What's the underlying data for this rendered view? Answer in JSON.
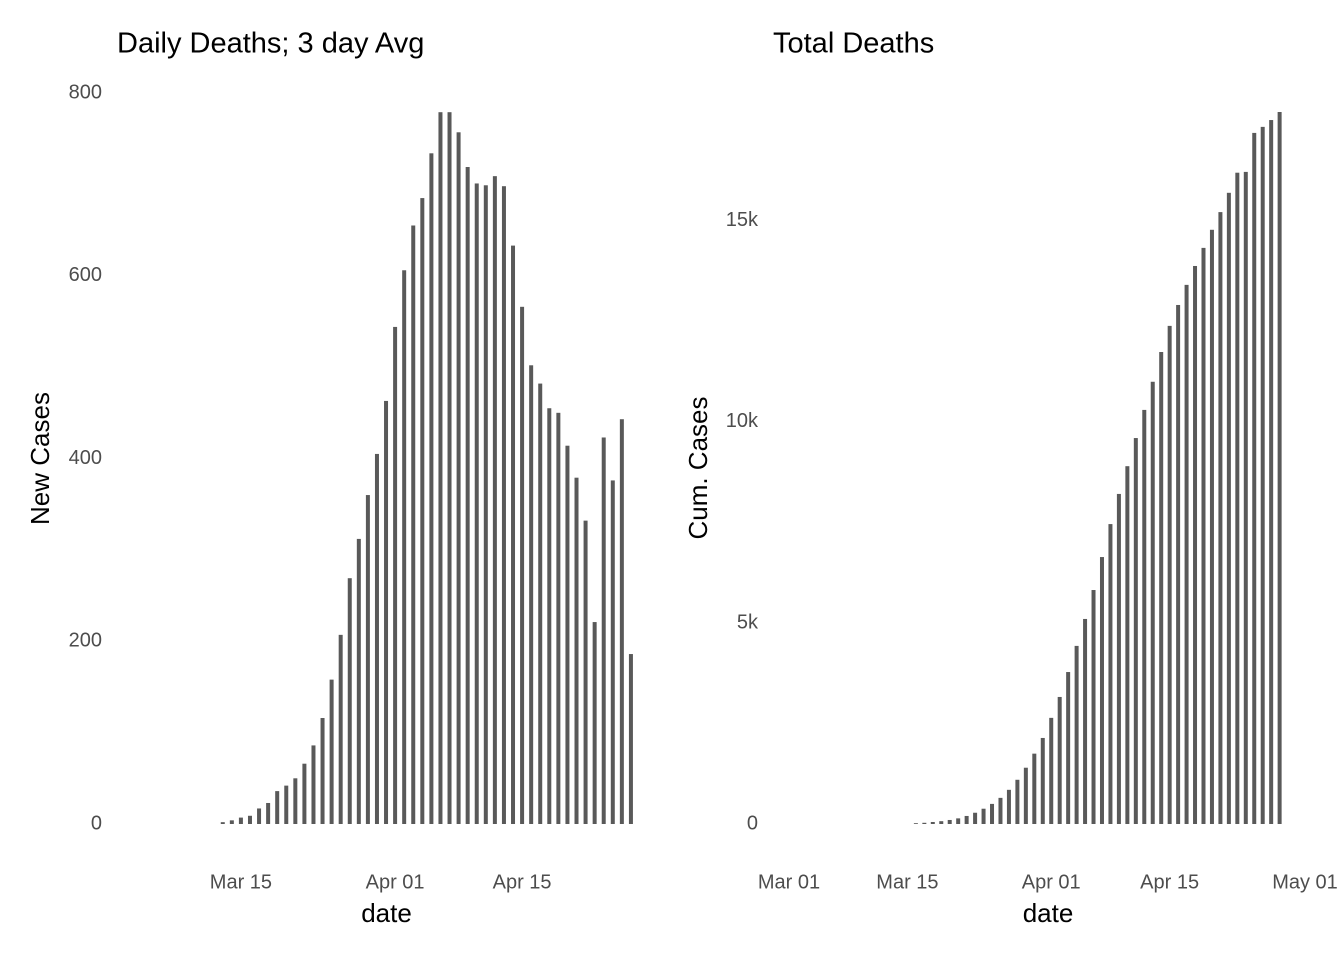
{
  "chart_data": [
    {
      "type": "bar",
      "title": "Daily Deaths; 3 day Avg",
      "x_label": "date",
      "y_label": "New Cases",
      "color": "#595959",
      "x": [
        "Mar 13",
        "Mar 14",
        "Mar 15",
        "Mar 16",
        "Mar 17",
        "Mar 18",
        "Mar 19",
        "Mar 20",
        "Mar 21",
        "Mar 22",
        "Mar 23",
        "Mar 24",
        "Mar 25",
        "Mar 26",
        "Mar 27",
        "Mar 28",
        "Mar 29",
        "Mar 30",
        "Mar 31",
        "Apr 01",
        "Apr 02",
        "Apr 03",
        "Apr 04",
        "Apr 05",
        "Apr 06",
        "Apr 07",
        "Apr 08",
        "Apr 09",
        "Apr 10",
        "Apr 11",
        "Apr 12",
        "Apr 13",
        "Apr 14",
        "Apr 15",
        "Apr 16",
        "Apr 17",
        "Apr 18",
        "Apr 19",
        "Apr 20",
        "Apr 21",
        "Apr 22",
        "Apr 23",
        "Apr 24",
        "Apr 25",
        "Apr 26",
        "Apr 27"
      ],
      "values": [
        2,
        4,
        7,
        9,
        17,
        23,
        36,
        42,
        50,
        66,
        86,
        116,
        158,
        207,
        269,
        312,
        360,
        405,
        463,
        544,
        606,
        655,
        685,
        734,
        779,
        779,
        757,
        719,
        701,
        699,
        709,
        698,
        633,
        566,
        502,
        482,
        455,
        450,
        414,
        379,
        332,
        221,
        423,
        376,
        443,
        186
      ],
      "xlim": [
        "Mar 02",
        "Apr 28"
      ],
      "xticks": [
        "Mar 15",
        "Apr 01",
        "Apr 15"
      ],
      "ylim": [
        0,
        800
      ],
      "yticks": [
        0,
        200,
        400,
        600,
        800
      ],
      "grid": false
    },
    {
      "type": "bar",
      "title": "Total Deaths",
      "x_label": "date",
      "y_label": "Cum. Cases",
      "color": "#595959",
      "x": [
        "Mar 16",
        "Mar 17",
        "Mar 18",
        "Mar 19",
        "Mar 20",
        "Mar 21",
        "Mar 22",
        "Mar 23",
        "Mar 24",
        "Mar 25",
        "Mar 26",
        "Mar 27",
        "Mar 28",
        "Mar 29",
        "Mar 30",
        "Mar 31",
        "Apr 01",
        "Apr 02",
        "Apr 03",
        "Apr 04",
        "Apr 05",
        "Apr 06",
        "Apr 07",
        "Apr 08",
        "Apr 09",
        "Apr 10",
        "Apr 11",
        "Apr 12",
        "Apr 13",
        "Apr 14",
        "Apr 15",
        "Apr 16",
        "Apr 17",
        "Apr 18",
        "Apr 19",
        "Apr 20",
        "Apr 21",
        "Apr 22",
        "Apr 23",
        "Apr 24",
        "Apr 25",
        "Apr 26",
        "Apr 27",
        "Apr 28"
      ],
      "values": [
        20,
        30,
        50,
        70,
        100,
        140,
        200,
        280,
        380,
        500,
        650,
        850,
        1100,
        1400,
        1750,
        2140,
        2640,
        3160,
        3780,
        4430,
        5100,
        5820,
        6640,
        7460,
        8210,
        8900,
        9600,
        10300,
        11000,
        11740,
        12390,
        12910,
        13410,
        13880,
        14330,
        14780,
        15220,
        15700,
        16200,
        16220,
        17190,
        17340,
        17510,
        17710
      ],
      "xlim": [
        "Mar 01",
        "May 01"
      ],
      "xticks": [
        "Mar 01",
        "Mar 15",
        "Apr 01",
        "Apr 15",
        "May 01"
      ],
      "ylim": [
        0,
        17710
      ],
      "yticks": [
        0,
        {
          "value": 5000,
          "label": "5k"
        },
        {
          "value": 10000,
          "label": "10k"
        },
        {
          "value": 15000,
          "label": "15k"
        }
      ],
      "grid": false
    }
  ]
}
